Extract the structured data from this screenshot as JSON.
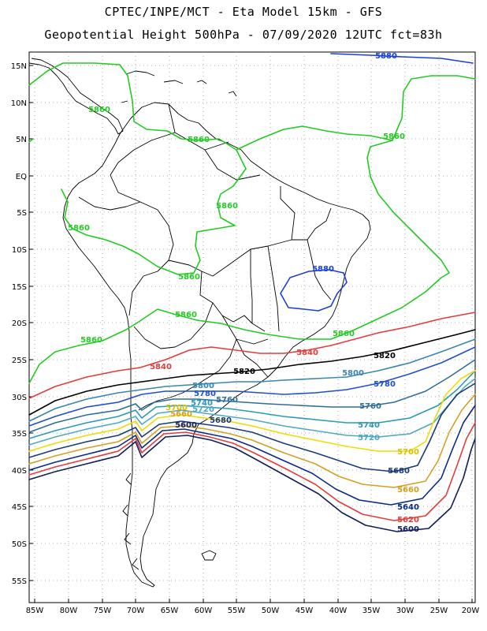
{
  "header": {
    "line1": "CPTEC/INPE/MCT -  Eta Model 15km - GFS",
    "line2": "Geopotential Height 500hPa - 07/09/2020 12UTC fct=83h"
  },
  "axes": {
    "lat_labels": [
      "15N",
      "10N",
      "5N",
      "EQ",
      "5S",
      "10S",
      "15S",
      "20S",
      "25S",
      "30S",
      "35S",
      "40S",
      "45S",
      "50S",
      "55S"
    ],
    "lon_labels": [
      "85W",
      "80W",
      "75W",
      "70W",
      "65W",
      "60W",
      "55W",
      "50W",
      "45W",
      "40W",
      "35W",
      "30W",
      "25W",
      "20W"
    ]
  },
  "contours": [
    {
      "value": 5880,
      "label": "5880",
      "color": "#1a3fe0"
    },
    {
      "value": 5860,
      "label": "5860",
      "color": "#22cc22"
    },
    {
      "value": 5840,
      "label": "5840",
      "color": "#e63b3b"
    },
    {
      "value": 5820,
      "label": "5820",
      "color": "#000000"
    },
    {
      "value": 5800,
      "label": "5800",
      "color": "#3a86b0"
    },
    {
      "value": 5780,
      "label": "5780",
      "color": "#1f4fd0"
    },
    {
      "value": 5760,
      "label": "5760",
      "color": "#2e6e96"
    },
    {
      "value": 5740,
      "label": "5740",
      "color": "#2a9ab4"
    },
    {
      "value": 5720,
      "label": "5720",
      "color": "#4fa9c4"
    },
    {
      "value": 5700,
      "label": "5700",
      "color": "#f0dc00"
    },
    {
      "value": 5680,
      "label": "5680",
      "color": "#1c3a78"
    },
    {
      "value": 5660,
      "label": "5660",
      "color": "#d4a020"
    },
    {
      "value": 5640,
      "label": "5640",
      "color": "#0a2a88"
    },
    {
      "value": 5620,
      "label": "5620",
      "color": "#e63b3b"
    },
    {
      "value": 5600,
      "label": "5600",
      "color": "#101e5a"
    }
  ]
}
